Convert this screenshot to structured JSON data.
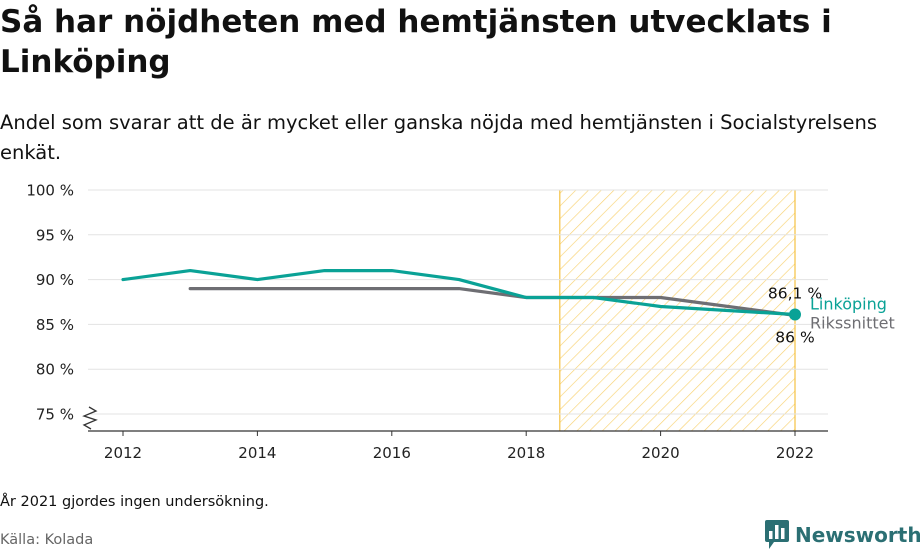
{
  "chart_data": {
    "type": "line",
    "title": "Så har nöjdheten med hemtjänsten utvecklats i Linköping",
    "subtitle": "Andel som svarar att de är mycket eller ganska nöjda med hemtjänsten i Socialstyrelsens enkät.",
    "xlabel": "",
    "ylabel": "",
    "xlim": [
      2011.5,
      2022.5
    ],
    "ylim": [
      73,
      100
    ],
    "x_ticks": [
      2012,
      2014,
      2016,
      2018,
      2020,
      2022
    ],
    "y_ticks": [
      100,
      95,
      90,
      85,
      80,
      75
    ],
    "y_tick_labels": [
      "100 %",
      "95 %",
      "90 %",
      "85 %",
      "80 %",
      "75 %"
    ],
    "y_axis_break": true,
    "grid": "horizontal",
    "highlight_range": {
      "x": [
        2018.5,
        2022
      ],
      "pattern": "diagonal-hatch",
      "color": "#f5c242"
    },
    "series": [
      {
        "name": "Linköping",
        "color": "#0aa296",
        "x": [
          2012,
          2013,
          2014,
          2015,
          2016,
          2017,
          2018,
          2019,
          2020,
          2022
        ],
        "values": [
          90,
          91,
          90,
          91,
          91,
          90,
          88,
          88,
          87,
          86.1
        ],
        "end_label": "86,1 %",
        "end_marker": true
      },
      {
        "name": "Rikssnittet",
        "color": "#6e6e73",
        "x": [
          2013,
          2014,
          2015,
          2016,
          2017,
          2018,
          2019,
          2020,
          2022
        ],
        "values": [
          89,
          89,
          89,
          89,
          89,
          88,
          88,
          88,
          86
        ],
        "end_label": "86 %"
      }
    ]
  },
  "footnote": "År 2021 gjordes ingen undersökning.",
  "source": "Källa: Kolada",
  "brand": {
    "name": "Newsworthy",
    "color": "#2b6f73"
  }
}
